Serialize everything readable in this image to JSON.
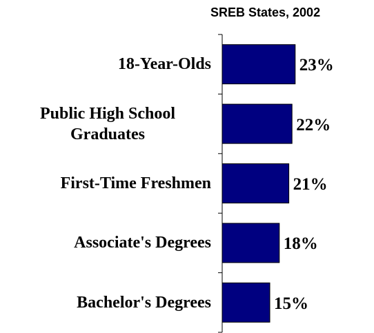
{
  "chart_data": {
    "type": "bar",
    "orientation": "horizontal",
    "title": "SREB States, 2002",
    "categories": [
      "18-Year-Olds",
      "Public High School Graduates",
      "First-Time Freshmen",
      "Associate's Degrees",
      "Bachelor's Degrees"
    ],
    "values": [
      23,
      22,
      21,
      18,
      15
    ],
    "value_labels": [
      "23%",
      "22%",
      "21%",
      "18%",
      "15%"
    ],
    "color": "#000080"
  }
}
